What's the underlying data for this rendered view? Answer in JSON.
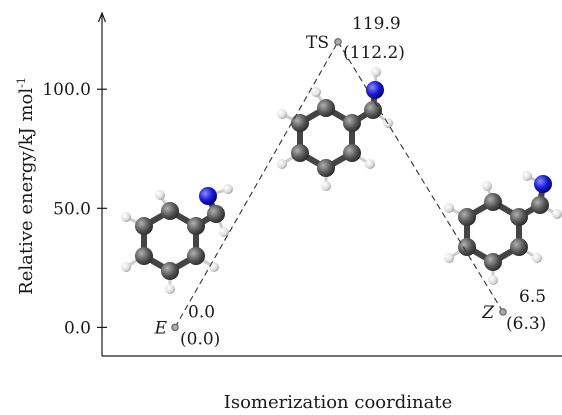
{
  "chart_data": {
    "type": "line",
    "xlabel": "Isomerization coordinate",
    "ylabel": "Relative energy/kJ mol-1",
    "ylabel_main": "Relative energy/kJ mol",
    "ylabel_sup": "-1",
    "ylim": [
      -12,
      132
    ],
    "yticks": [
      0,
      50,
      100
    ],
    "ytick_labels": [
      "0.0",
      "50.0",
      "100.0"
    ],
    "grid": false,
    "legend": "none",
    "series": [
      {
        "points": [
          {
            "x": 0,
            "y": 0.0,
            "name": "E",
            "value_label": "0.0",
            "alt_label": "(0.0)"
          },
          {
            "x": 1,
            "y": 119.9,
            "name": "TS",
            "value_label": "119.9",
            "alt_label": "(112.2)"
          },
          {
            "x": 2,
            "y": 6.5,
            "name": "Z",
            "value_label": "6.5",
            "alt_label": "(6.3)"
          }
        ],
        "line_style": "dashed"
      }
    ],
    "icons": [
      "E-isomer-molecule-icon",
      "transition-state-molecule-icon",
      "Z-isomer-molecule-icon"
    ],
    "colors": {
      "carbon": "#555555",
      "nitrogen": "#1a1ad6",
      "hydrogen": "#e8e8e8",
      "line": "#333333"
    }
  }
}
